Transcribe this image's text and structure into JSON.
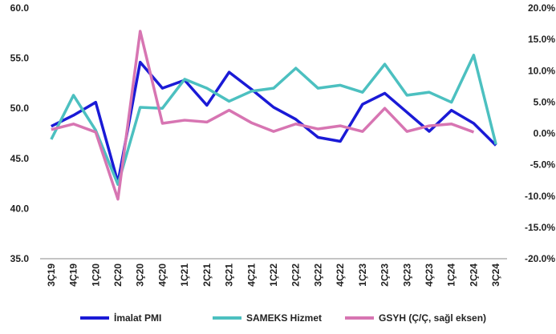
{
  "chart_data": {
    "type": "line",
    "categories": [
      "3Ç19",
      "4Ç19",
      "1Ç20",
      "2Ç20",
      "3Ç20",
      "4Ç20",
      "1Ç21",
      "2Ç21",
      "3Ç21",
      "4Ç21",
      "1Ç22",
      "2Ç22",
      "3Ç22",
      "4Ç22",
      "1Ç23",
      "2Ç23",
      "3Ç23",
      "4Ç23",
      "1Ç24",
      "2Ç24",
      "3Ç24"
    ],
    "series": [
      {
        "name": "İmalat PMI",
        "color": "#1a1ad6",
        "values": [
          48.2,
          49.3,
          50.6,
          42.6,
          54.6,
          52.0,
          52.8,
          50.3,
          53.6,
          51.9,
          50.1,
          48.9,
          47.1,
          46.7,
          50.4,
          51.5,
          49.6,
          47.7,
          49.8,
          48.5,
          46.3
        ]
      },
      {
        "name": "SAMEKS Hizmet",
        "color": "#4cc0c0",
        "values": [
          46.9,
          51.3,
          47.8,
          42.4,
          50.1,
          50.0,
          52.9,
          52.0,
          50.7,
          51.7,
          52.0,
          54.0,
          52.0,
          52.3,
          51.6,
          54.4,
          51.3,
          51.6,
          50.6,
          55.3,
          46.4
        ]
      },
      {
        "name": "GSYH (Ç/Ç, sağl eksen)",
        "color": "#d775b2",
        "axis": "y2",
        "values": [
          0.6,
          1.5,
          0.2,
          -10.5,
          16.3,
          1.6,
          2.1,
          1.8,
          3.7,
          1.7,
          0.3,
          1.5,
          0.7,
          1.2,
          0.3,
          4.0,
          0.3,
          1.2,
          1.5,
          0.2,
          null
        ]
      }
    ],
    "ylim": [
      35,
      60
    ],
    "yticks": [
      {
        "value": 35,
        "label": "35.0"
      },
      {
        "value": 40,
        "label": "40.0"
      },
      {
        "value": 45,
        "label": "45.0"
      },
      {
        "value": 50,
        "label": "50.0"
      },
      {
        "value": 55,
        "label": "55.0"
      },
      {
        "value": 60,
        "label": "60.0"
      }
    ],
    "y2lim": [
      -20,
      20
    ],
    "y2ticks": [
      {
        "value": -20,
        "label": "-20.0%"
      },
      {
        "value": -15,
        "label": "-15.0%"
      },
      {
        "value": -10,
        "label": "-10.0%"
      },
      {
        "value": -5,
        "label": "-5.0%"
      },
      {
        "value": 0,
        "label": "0.0%"
      },
      {
        "value": 5,
        "label": "5.0%"
      },
      {
        "value": 10,
        "label": "10.0%"
      },
      {
        "value": 15,
        "label": "15.0%"
      },
      {
        "value": 20,
        "label": "20.0%"
      }
    ],
    "legend": "bottom"
  }
}
